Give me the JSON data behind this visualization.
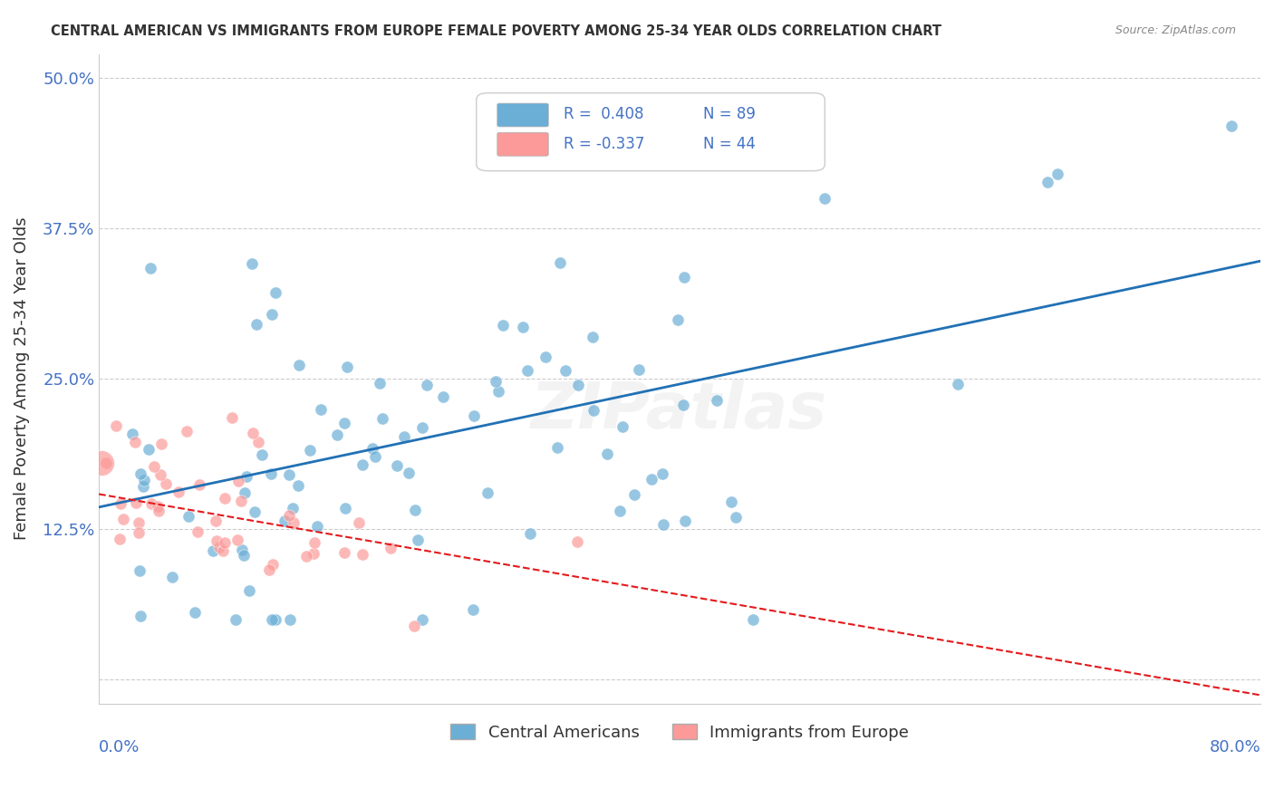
{
  "title": "CENTRAL AMERICAN VS IMMIGRANTS FROM EUROPE FEMALE POVERTY AMONG 25-34 YEAR OLDS CORRELATION CHART",
  "source": "Source: ZipAtlas.com",
  "ylabel": "Female Poverty Among 25-34 Year Olds",
  "legend_blue_r": "0.408",
  "legend_blue_n": "89",
  "legend_pink_r": "-0.337",
  "legend_pink_n": "44",
  "legend_label_blue": "Central Americans",
  "legend_label_pink": "Immigrants from Europe",
  "xlim": [
    0.0,
    0.8
  ],
  "ylim": [
    -0.02,
    0.52
  ],
  "yticks": [
    0.0,
    0.125,
    0.25,
    0.375,
    0.5
  ],
  "ytick_labels": [
    "",
    "12.5%",
    "25.0%",
    "37.5%",
    "50.0%"
  ],
  "blue_color": "#6baed6",
  "pink_color": "#fb9a99",
  "blue_line_color": "#2171b5",
  "pink_line_color": "#e31a1c",
  "blue_r": 0.408,
  "pink_r": -0.337,
  "blue_N": 89,
  "pink_N": 44,
  "background_color": "#ffffff",
  "grid_color": "#cccccc"
}
